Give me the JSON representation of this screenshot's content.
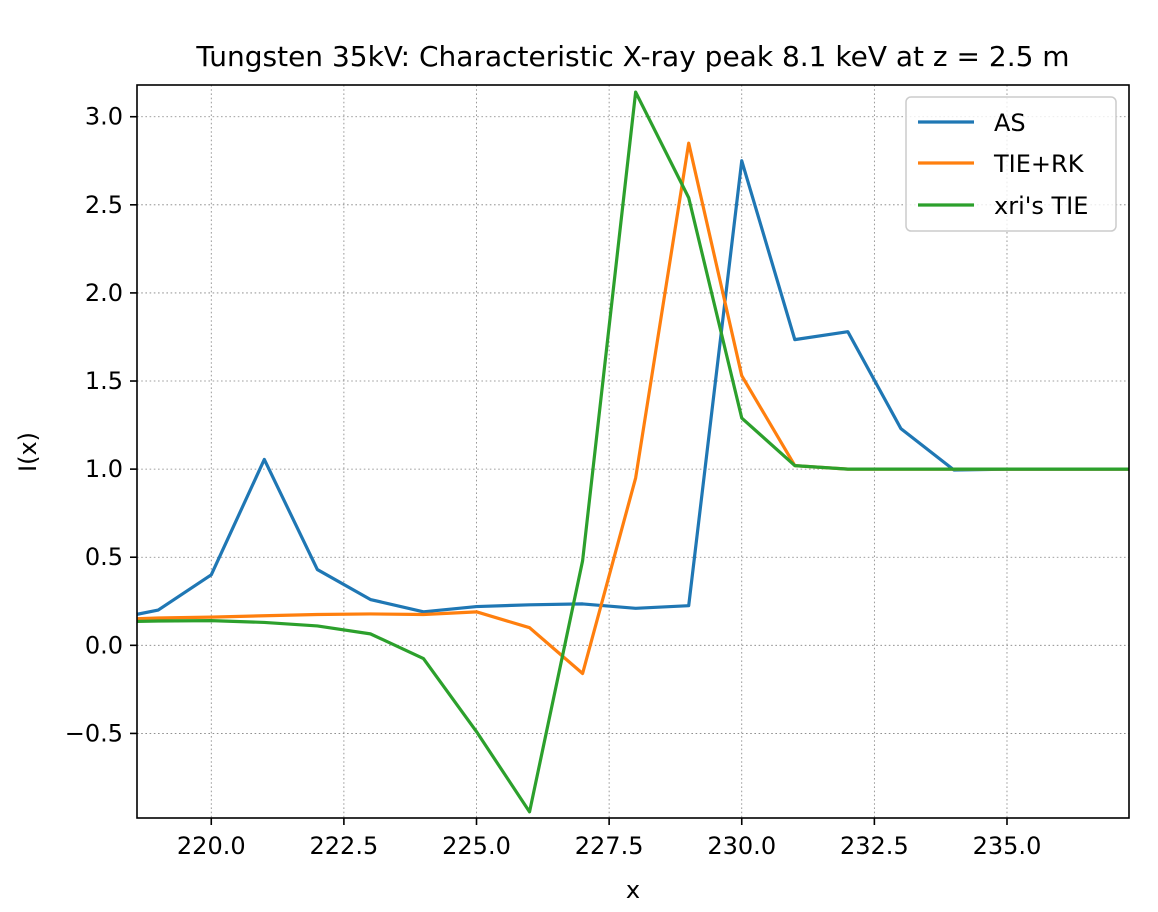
{
  "chart_data": {
    "type": "line",
    "title": "Tungsten 35kV: Characteristic X-ray peak 8.1 keV at z = 2.5 m",
    "xlabel": "x",
    "ylabel": "I(x)",
    "xlim": [
      218.6,
      237.3
    ],
    "ylim": [
      -0.98,
      3.18
    ],
    "grid": true,
    "legend_position": "top-right",
    "x_ticks": [
      220.0,
      222.5,
      225.0,
      227.5,
      230.0,
      232.5,
      235.0
    ],
    "x_tick_labels": [
      "220.0",
      "222.5",
      "225.0",
      "227.5",
      "230.0",
      "232.5",
      "235.0"
    ],
    "y_ticks": [
      -0.5,
      0.0,
      0.5,
      1.0,
      1.5,
      2.0,
      2.5,
      3.0
    ],
    "y_tick_labels": [
      "−0.5",
      "0.0",
      "0.5",
      "1.0",
      "1.5",
      "2.0",
      "2.5",
      "3.0"
    ],
    "x": [
      218.5,
      219,
      220,
      221,
      222,
      223,
      224,
      225,
      226,
      227,
      228,
      229,
      230,
      231,
      232,
      233,
      234,
      235,
      236,
      237,
      237.5
    ],
    "series": [
      {
        "name": "AS",
        "color": "#1f77b4",
        "values": [
          0.17,
          0.2,
          0.4,
          1.055,
          0.43,
          0.26,
          0.19,
          0.22,
          0.23,
          0.235,
          0.21,
          0.225,
          2.75,
          1.735,
          1.78,
          1.23,
          0.995,
          1.0,
          1.0,
          1.0,
          1.0
        ]
      },
      {
        "name": "TIE+RK",
        "color": "#ff7f0e",
        "values": [
          0.15,
          0.155,
          0.16,
          0.168,
          0.175,
          0.178,
          0.175,
          0.19,
          0.1,
          -0.16,
          0.95,
          2.85,
          1.53,
          1.02,
          1.0,
          1.0,
          1.0,
          1.0,
          1.0,
          1.0,
          1.0
        ]
      },
      {
        "name": "xri's TIE",
        "color": "#2ca02c",
        "values": [
          0.135,
          0.138,
          0.14,
          0.13,
          0.11,
          0.065,
          -0.075,
          -0.49,
          -0.945,
          0.48,
          3.14,
          2.54,
          1.29,
          1.02,
          1.0,
          1.0,
          1.0,
          1.0,
          1.0,
          1.0,
          1.0
        ]
      }
    ]
  }
}
